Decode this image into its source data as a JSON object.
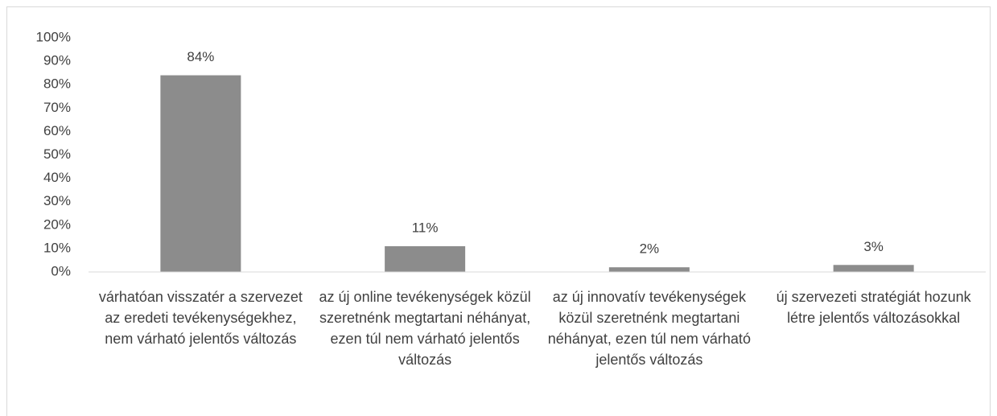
{
  "chart_data": {
    "type": "bar",
    "categories": [
      "várhatóan visszatér a szervezet az eredeti tevékenységekhez, nem várható jelentős változás",
      "az új online tevékenységek közül szeretnénk megtartani néhányat, ezen túl nem várható jelentős változás",
      "az új innovatív tevékenységek közül szeretnénk megtartani néhányat, ezen túl nem várható jelentős változás",
      "új szervezeti stratégiát hozunk létre jelentős változásokkal"
    ],
    "values": [
      84,
      11,
      2,
      3
    ],
    "value_labels": [
      "84%",
      "11%",
      "2%",
      "3%"
    ],
    "color": "#8c8c8c",
    "ylim": [
      0,
      100
    ],
    "yticks": [
      {
        "value": 0,
        "label": "0%"
      },
      {
        "value": 10,
        "label": "10%"
      },
      {
        "value": 20,
        "label": "20%"
      },
      {
        "value": 30,
        "label": "30%"
      },
      {
        "value": 40,
        "label": "40%"
      },
      {
        "value": 50,
        "label": "50%"
      },
      {
        "value": 60,
        "label": "60%"
      },
      {
        "value": 70,
        "label": "70%"
      },
      {
        "value": 80,
        "label": "80%"
      },
      {
        "value": 90,
        "label": "90%"
      },
      {
        "value": 100,
        "label": "100%"
      }
    ],
    "grid": false
  }
}
